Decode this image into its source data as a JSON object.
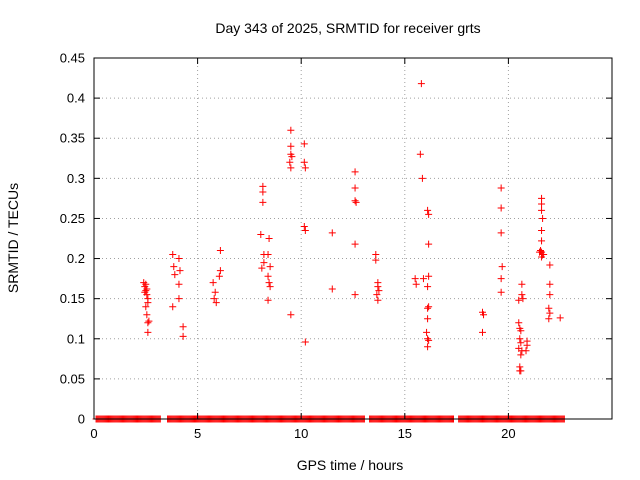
{
  "chart_data": {
    "type": "scatter",
    "title": "Day 343 of 2025, SRMTID for receiver grts",
    "xlabel": "GPS time / hours",
    "ylabel": "SRMTID / TECUs",
    "xlim": [
      0,
      25
    ],
    "ylim": [
      0,
      0.45
    ],
    "xticks": [
      "0",
      "5",
      "10",
      "15",
      "20"
    ],
    "yticks": [
      "0",
      "0.05",
      "0.1",
      "0.15",
      "0.2",
      "0.25",
      "0.3",
      "0.35",
      "0.4",
      "0.45"
    ],
    "grid": true,
    "legend": "none",
    "series": [
      {
        "marker": "plus",
        "color": "#ff0000",
        "points": [
          [
            2.4,
            0.17
          ],
          [
            2.45,
            0.165
          ],
          [
            2.5,
            0.16
          ],
          [
            2.55,
            0.155
          ],
          [
            2.6,
            0.15
          ],
          [
            2.45,
            0.158
          ],
          [
            2.55,
            0.162
          ],
          [
            2.5,
            0.168
          ],
          [
            2.6,
            0.145
          ],
          [
            2.5,
            0.14
          ],
          [
            2.55,
            0.13
          ],
          [
            2.6,
            0.12
          ],
          [
            2.65,
            0.122
          ],
          [
            2.6,
            0.108
          ],
          [
            3.8,
            0.205
          ],
          [
            3.85,
            0.19
          ],
          [
            3.9,
            0.18
          ],
          [
            3.8,
            0.14
          ],
          [
            4.1,
            0.2
          ],
          [
            4.15,
            0.185
          ],
          [
            4.1,
            0.168
          ],
          [
            4.1,
            0.15
          ],
          [
            4.3,
            0.115
          ],
          [
            4.3,
            0.103
          ],
          [
            5.75,
            0.17
          ],
          [
            5.85,
            0.158
          ],
          [
            5.8,
            0.15
          ],
          [
            5.9,
            0.145
          ],
          [
            6.1,
            0.21
          ],
          [
            6.1,
            0.185
          ],
          [
            6.05,
            0.178
          ],
          [
            8.05,
            0.23
          ],
          [
            8.15,
            0.29
          ],
          [
            8.15,
            0.283
          ],
          [
            8.15,
            0.27
          ],
          [
            8.2,
            0.205
          ],
          [
            8.2,
            0.195
          ],
          [
            8.1,
            0.188
          ],
          [
            8.45,
            0.225
          ],
          [
            8.4,
            0.205
          ],
          [
            8.4,
            0.178
          ],
          [
            8.45,
            0.17
          ],
          [
            8.5,
            0.165
          ],
          [
            8.4,
            0.148
          ],
          [
            8.5,
            0.19
          ],
          [
            9.5,
            0.36
          ],
          [
            9.5,
            0.34
          ],
          [
            9.5,
            0.33
          ],
          [
            9.55,
            0.327
          ],
          [
            9.45,
            0.32
          ],
          [
            9.5,
            0.313
          ],
          [
            9.5,
            0.13
          ],
          [
            10.15,
            0.343
          ],
          [
            10.15,
            0.32
          ],
          [
            10.2,
            0.313
          ],
          [
            10.15,
            0.24
          ],
          [
            10.2,
            0.235
          ],
          [
            10.2,
            0.096
          ],
          [
            11.5,
            0.232
          ],
          [
            11.5,
            0.162
          ],
          [
            12.6,
            0.308
          ],
          [
            12.6,
            0.288
          ],
          [
            12.6,
            0.272
          ],
          [
            12.65,
            0.27
          ],
          [
            12.6,
            0.218
          ],
          [
            12.6,
            0.155
          ],
          [
            13.6,
            0.205
          ],
          [
            13.6,
            0.198
          ],
          [
            13.7,
            0.17
          ],
          [
            13.7,
            0.165
          ],
          [
            13.75,
            0.16
          ],
          [
            13.65,
            0.155
          ],
          [
            13.7,
            0.148
          ],
          [
            15.5,
            0.175
          ],
          [
            15.55,
            0.168
          ],
          [
            15.8,
            0.418
          ],
          [
            15.75,
            0.33
          ],
          [
            15.85,
            0.3
          ],
          [
            15.9,
            0.175
          ],
          [
            16.1,
            0.26
          ],
          [
            16.15,
            0.255
          ],
          [
            16.15,
            0.218
          ],
          [
            16.15,
            0.178
          ],
          [
            16.1,
            0.165
          ],
          [
            16.15,
            0.14
          ],
          [
            16.1,
            0.138
          ],
          [
            16.1,
            0.125
          ],
          [
            16.05,
            0.108
          ],
          [
            16.1,
            0.1
          ],
          [
            16.15,
            0.098
          ],
          [
            16.1,
            0.09
          ],
          [
            18.75,
            0.133
          ],
          [
            18.8,
            0.13
          ],
          [
            18.75,
            0.108
          ],
          [
            19.65,
            0.288
          ],
          [
            19.65,
            0.263
          ],
          [
            19.65,
            0.232
          ],
          [
            19.7,
            0.19
          ],
          [
            19.65,
            0.175
          ],
          [
            19.65,
            0.158
          ],
          [
            20.5,
            0.148
          ],
          [
            20.65,
            0.155
          ],
          [
            20.7,
            0.15
          ],
          [
            20.65,
            0.168
          ],
          [
            20.5,
            0.12
          ],
          [
            20.55,
            0.113
          ],
          [
            20.6,
            0.11
          ],
          [
            20.55,
            0.1
          ],
          [
            20.6,
            0.095
          ],
          [
            20.5,
            0.088
          ],
          [
            20.65,
            0.085
          ],
          [
            20.6,
            0.08
          ],
          [
            20.55,
            0.065
          ],
          [
            20.6,
            0.06
          ],
          [
            20.55,
            0.06
          ],
          [
            20.9,
            0.097
          ],
          [
            20.9,
            0.092
          ],
          [
            20.85,
            0.085
          ],
          [
            21.6,
            0.275
          ],
          [
            21.6,
            0.268
          ],
          [
            21.6,
            0.26
          ],
          [
            21.65,
            0.25
          ],
          [
            21.6,
            0.235
          ],
          [
            21.6,
            0.222
          ],
          [
            21.55,
            0.21
          ],
          [
            21.6,
            0.208
          ],
          [
            21.65,
            0.205
          ],
          [
            21.6,
            0.202
          ],
          [
            21.7,
            0.205
          ],
          [
            21.5,
            0.208
          ],
          [
            22,
            0.192
          ],
          [
            22,
            0.168
          ],
          [
            22,
            0.155
          ],
          [
            21.95,
            0.138
          ],
          [
            22,
            0.132
          ],
          [
            21.95,
            0.125
          ],
          [
            22.5,
            0.126
          ]
        ]
      }
    ],
    "zero_run": {
      "value": 0,
      "from": 0.1,
      "to": 22.7,
      "gaps": [
        [
          3.2,
          3.5
        ],
        [
          13.1,
          13.3
        ],
        [
          17.4,
          17.6
        ]
      ]
    }
  }
}
